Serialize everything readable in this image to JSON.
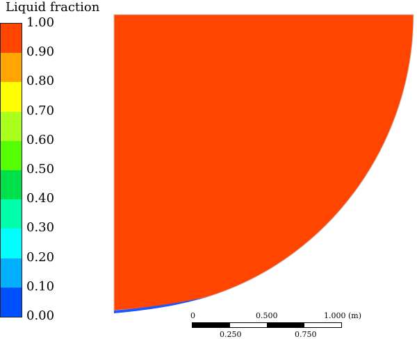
{
  "legend": {
    "title": "Liquid fraction",
    "ticks": [
      "1.00",
      "0.90",
      "0.80",
      "0.70",
      "0.60",
      "0.50",
      "0.40",
      "0.30",
      "0.20",
      "0.10",
      "0.00"
    ],
    "colors": [
      "#ff4500",
      "#ffa500",
      "#ffff00",
      "#aaff1e",
      "#55ff00",
      "#00e04a",
      "#00ffaa",
      "#00ffff",
      "#00b0ff",
      "#0050ff"
    ]
  },
  "domain_fill_color": "#ff4500",
  "interface_color": "#1f55ff",
  "scale_bar": {
    "top_labels": [
      "0",
      "0.500",
      "1.000 (m)"
    ],
    "bottom_labels": [
      "0.250",
      "0.750"
    ]
  }
}
